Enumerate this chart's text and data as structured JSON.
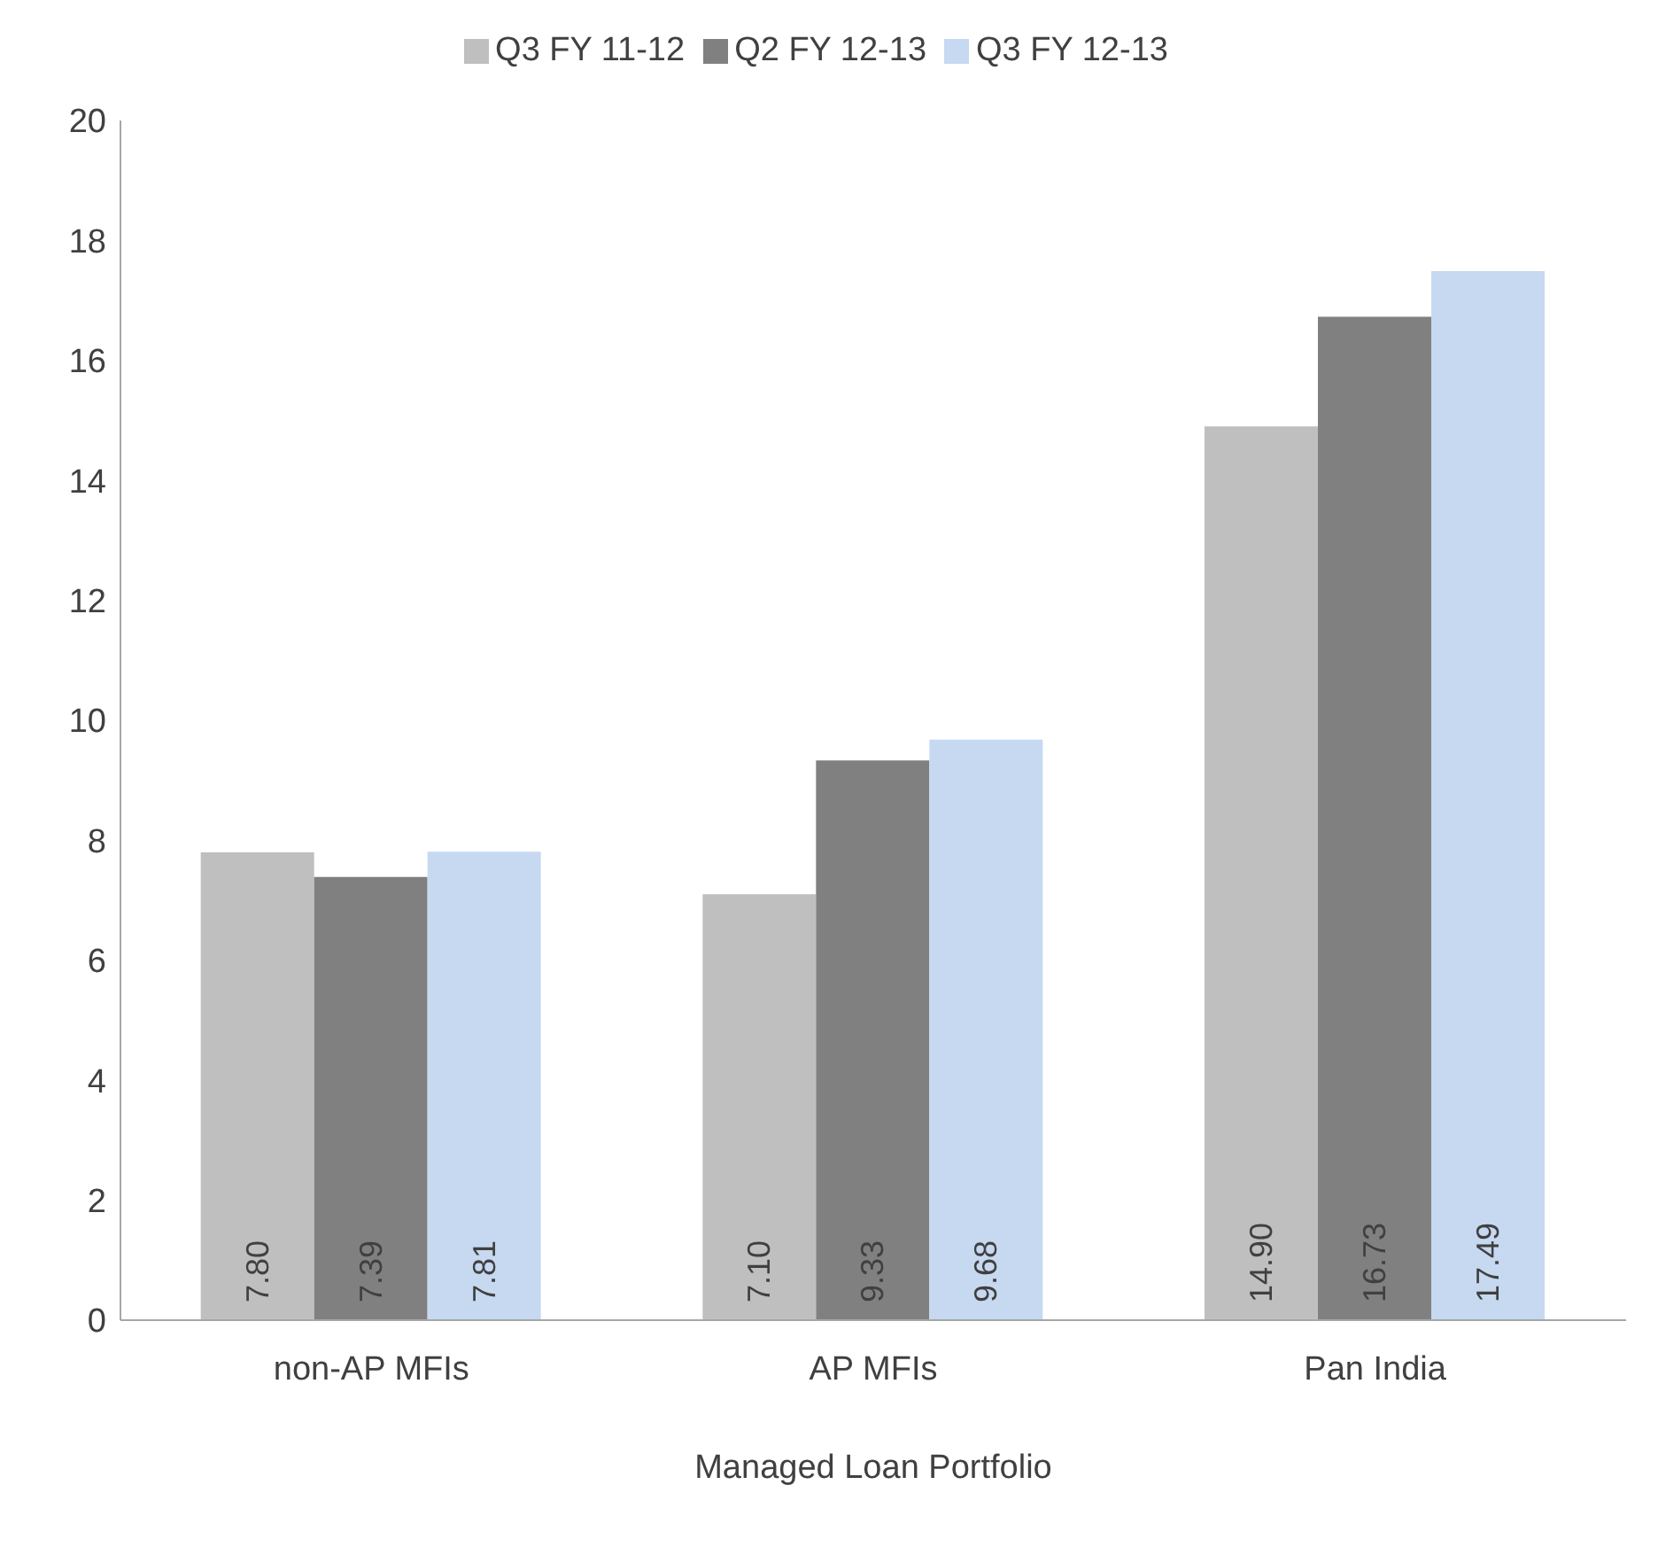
{
  "chart_data": {
    "type": "bar",
    "xlabel": "Managed Loan Portfolio",
    "categories": [
      "non-AP MFIs",
      "AP MFIs",
      "Pan India"
    ],
    "series": [
      {
        "name": "Q3 FY 11-12",
        "color": "#bfbfbf",
        "values": [
          7.8,
          7.1,
          14.9
        ],
        "value_labels": [
          "7.80",
          "7.10",
          "14.90"
        ]
      },
      {
        "name": "Q2 FY 12-13",
        "color": "#808080",
        "values": [
          7.39,
          9.33,
          16.73
        ],
        "value_labels": [
          "7.39",
          "9.33",
          "16.73"
        ]
      },
      {
        "name": "Q3 FY 12-13",
        "color": "#c6d9f1",
        "values": [
          7.81,
          9.68,
          17.49
        ],
        "value_labels": [
          "7.81",
          "9.68",
          "17.49"
        ]
      }
    ],
    "ylim": [
      0,
      20
    ],
    "yticks": [
      0,
      2,
      4,
      6,
      8,
      10,
      12,
      14,
      16,
      18,
      20
    ],
    "grid": false,
    "legend": "top"
  }
}
